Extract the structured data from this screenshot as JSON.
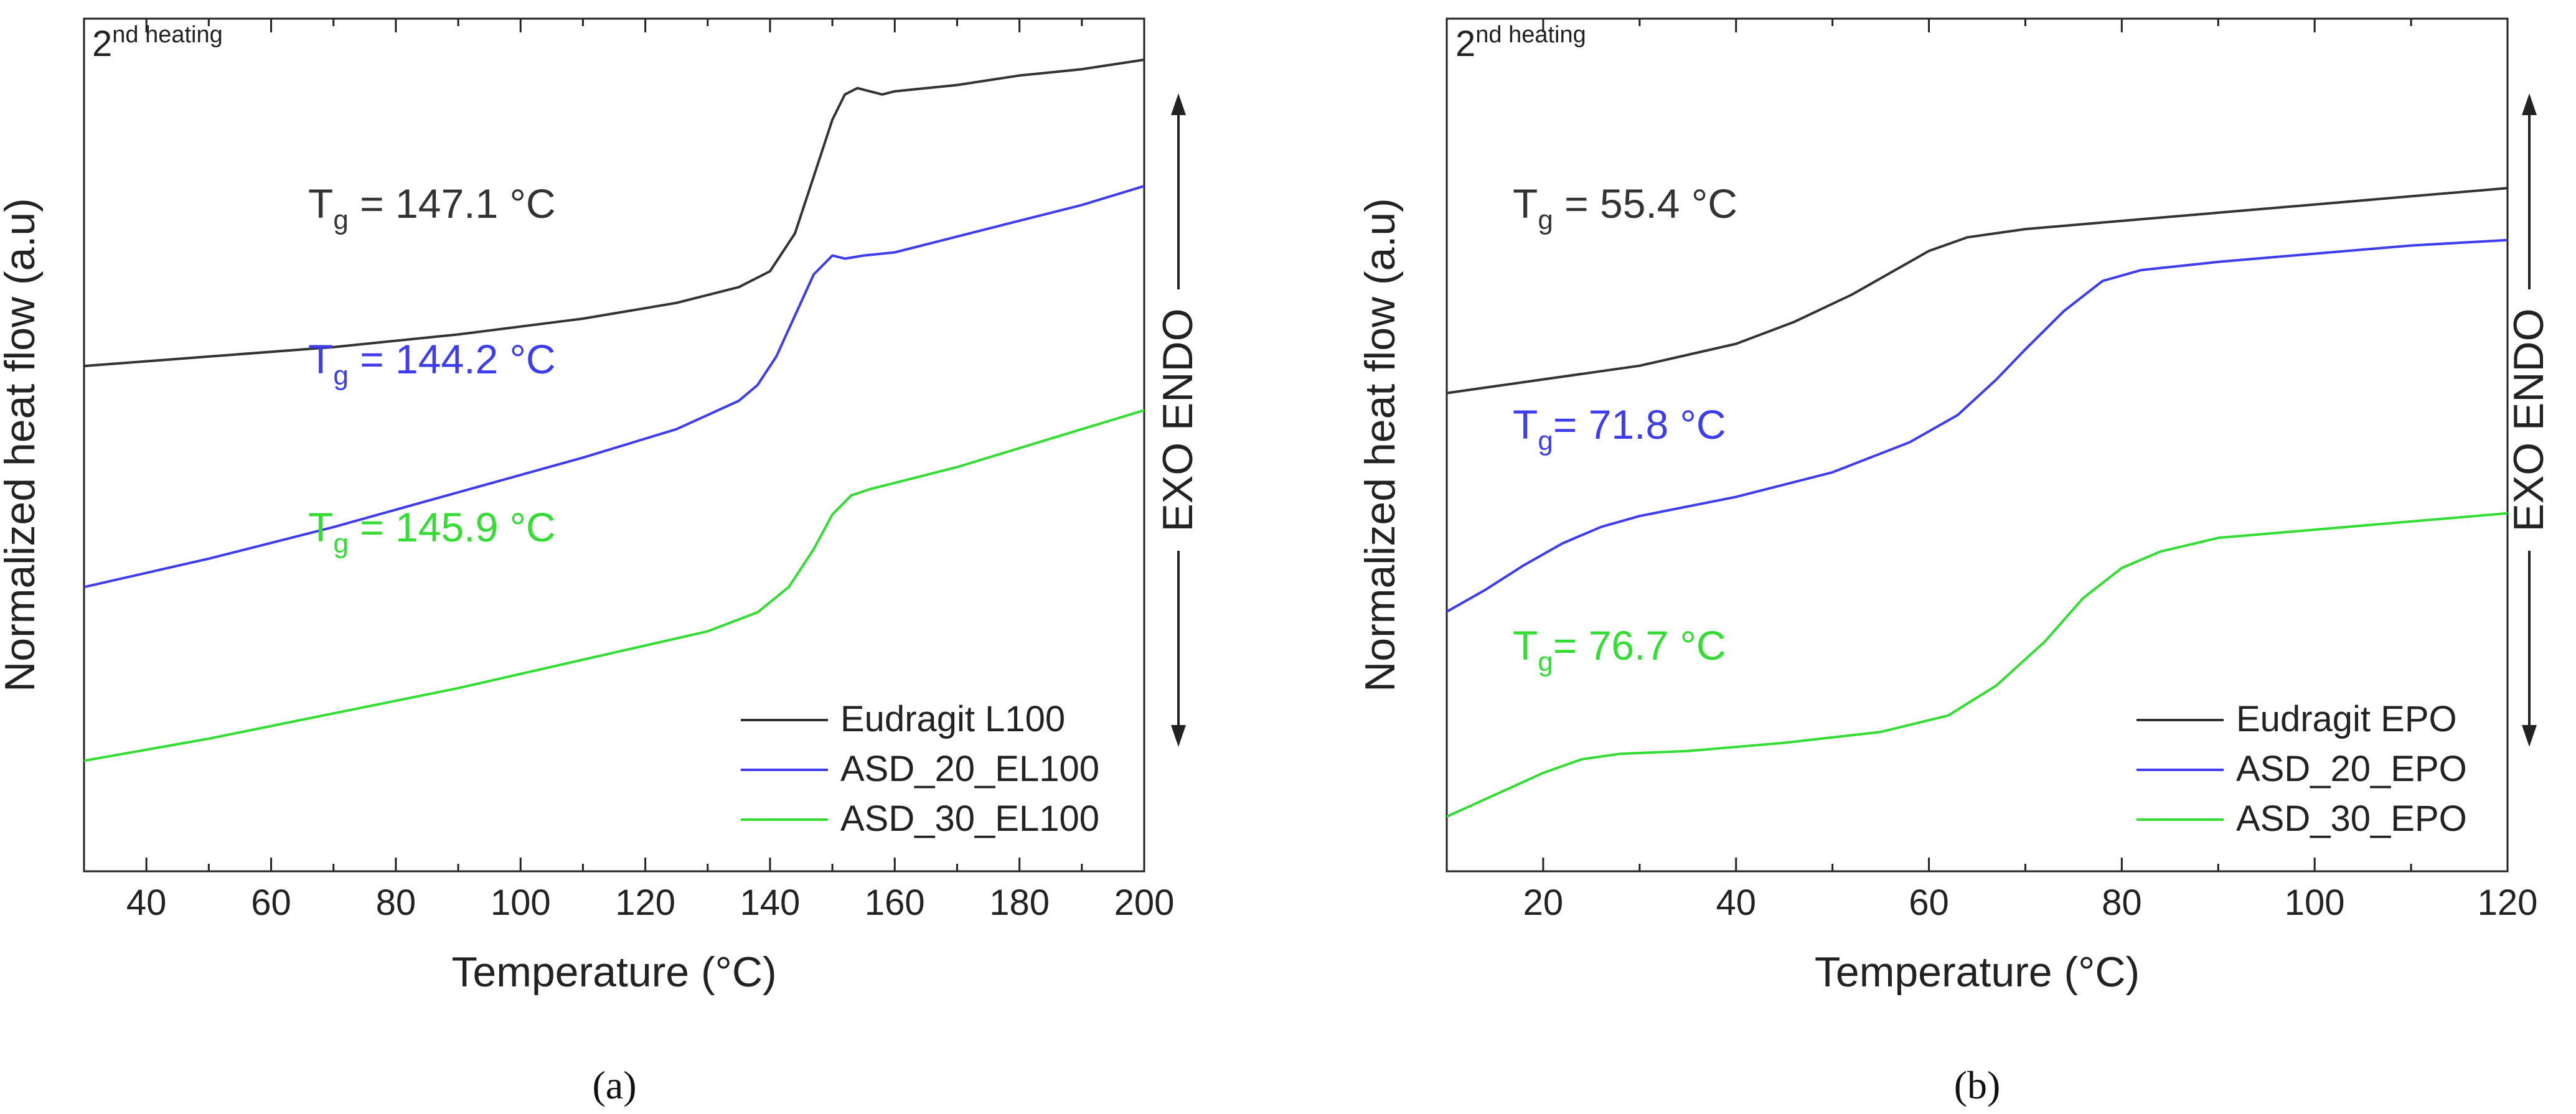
{
  "chart_data": [
    {
      "type": "line",
      "panel_label": "(a)",
      "heating_label": "nd heating",
      "heating_prefix": "2",
      "xlabel": "Temperature (°C)",
      "ylabel": "Normalized heat flow (a.u)",
      "side_label": "EXO  ENDO",
      "xlim": [
        30,
        200
      ],
      "xticks": [
        40,
        60,
        80,
        100,
        120,
        140,
        160,
        180,
        200
      ],
      "y_scale": "arbitrary units, no tick labels",
      "legend_position": "bottom-right",
      "series": [
        {
          "name": "Eudragit L100",
          "color": "#333333",
          "tg_label": "T",
          "tg_sub": "g",
          "tg_value": " = 147.1 °C",
          "x": [
            30,
            50,
            70,
            90,
            110,
            125,
            135,
            140,
            144,
            147,
            150,
            152,
            154,
            156,
            158,
            160,
            170,
            180,
            190,
            200
          ],
          "y": [
            0.0,
            0.03,
            0.06,
            0.1,
            0.15,
            0.2,
            0.25,
            0.3,
            0.42,
            0.6,
            0.78,
            0.86,
            0.88,
            0.87,
            0.86,
            0.87,
            0.89,
            0.92,
            0.94,
            0.97
          ]
        },
        {
          "name": "ASD_20_EL100",
          "color": "#3d3dee",
          "tg_label": "T",
          "tg_sub": "g",
          "tg_value": " = 144.2 °C",
          "x": [
            30,
            50,
            70,
            90,
            110,
            125,
            135,
            138,
            141,
            144,
            147,
            150,
            152,
            155,
            160,
            170,
            180,
            190,
            200
          ],
          "y": [
            0.0,
            0.09,
            0.19,
            0.3,
            0.41,
            0.5,
            0.59,
            0.64,
            0.73,
            0.86,
            0.99,
            1.05,
            1.04,
            1.05,
            1.06,
            1.11,
            1.16,
            1.21,
            1.27
          ]
        },
        {
          "name": "ASD_30_EL100",
          "color": "#33dd33",
          "tg_label": "T",
          "tg_sub": "g",
          "tg_value": " = 145.9 °C",
          "x": [
            30,
            50,
            70,
            90,
            110,
            130,
            138,
            143,
            147,
            150,
            153,
            156,
            160,
            170,
            180,
            190,
            200
          ],
          "y": [
            0.0,
            0.07,
            0.15,
            0.23,
            0.32,
            0.41,
            0.47,
            0.55,
            0.67,
            0.78,
            0.84,
            0.86,
            0.88,
            0.93,
            0.99,
            1.05,
            1.11
          ]
        }
      ]
    },
    {
      "type": "line",
      "panel_label": "(b)",
      "heating_label": "nd heating",
      "heating_prefix": "2",
      "xlabel": "Temperature (°C)",
      "ylabel": "Normalized heat flow (a.u)",
      "side_label": "EXO  ENDO",
      "xlim": [
        10,
        120
      ],
      "xticks": [
        20,
        40,
        60,
        80,
        100,
        120
      ],
      "y_scale": "arbitrary units, no tick labels",
      "legend_position": "bottom-right",
      "series": [
        {
          "name": "Eudragit EPO",
          "color": "#333333",
          "tg_label": "T",
          "tg_sub": "g",
          "tg_value": " = 55.4 °C",
          "x": [
            10,
            20,
            30,
            40,
            46,
            52,
            56,
            60,
            64,
            70,
            80,
            90,
            100,
            110,
            120
          ],
          "y": [
            0.0,
            0.05,
            0.1,
            0.18,
            0.26,
            0.36,
            0.44,
            0.52,
            0.57,
            0.6,
            0.63,
            0.66,
            0.69,
            0.72,
            0.75
          ]
        },
        {
          "name": "ASD_20_EPO",
          "color": "#3d3dee",
          "tg_label": "T",
          "tg_sub": "g",
          "tg_value": "=  71.8 °C",
          "x": [
            10,
            14,
            18,
            22,
            26,
            30,
            40,
            50,
            58,
            63,
            67,
            70,
            74,
            78,
            82,
            90,
            100,
            110,
            120
          ],
          "y": [
            0.0,
            0.08,
            0.17,
            0.25,
            0.31,
            0.35,
            0.42,
            0.51,
            0.62,
            0.72,
            0.85,
            0.96,
            1.1,
            1.21,
            1.25,
            1.28,
            1.31,
            1.34,
            1.36
          ]
        },
        {
          "name": "ASD_30_EPO",
          "color": "#33dd33",
          "tg_label": "T",
          "tg_sub": "g",
          "tg_value": "=  76.7 °C",
          "x": [
            10,
            15,
            20,
            24,
            28,
            35,
            45,
            55,
            62,
            67,
            72,
            76,
            80,
            84,
            90,
            100,
            110,
            120
          ],
          "y": [
            0.0,
            0.08,
            0.16,
            0.21,
            0.23,
            0.24,
            0.27,
            0.31,
            0.37,
            0.48,
            0.64,
            0.8,
            0.91,
            0.97,
            1.02,
            1.05,
            1.08,
            1.11
          ]
        }
      ]
    }
  ]
}
